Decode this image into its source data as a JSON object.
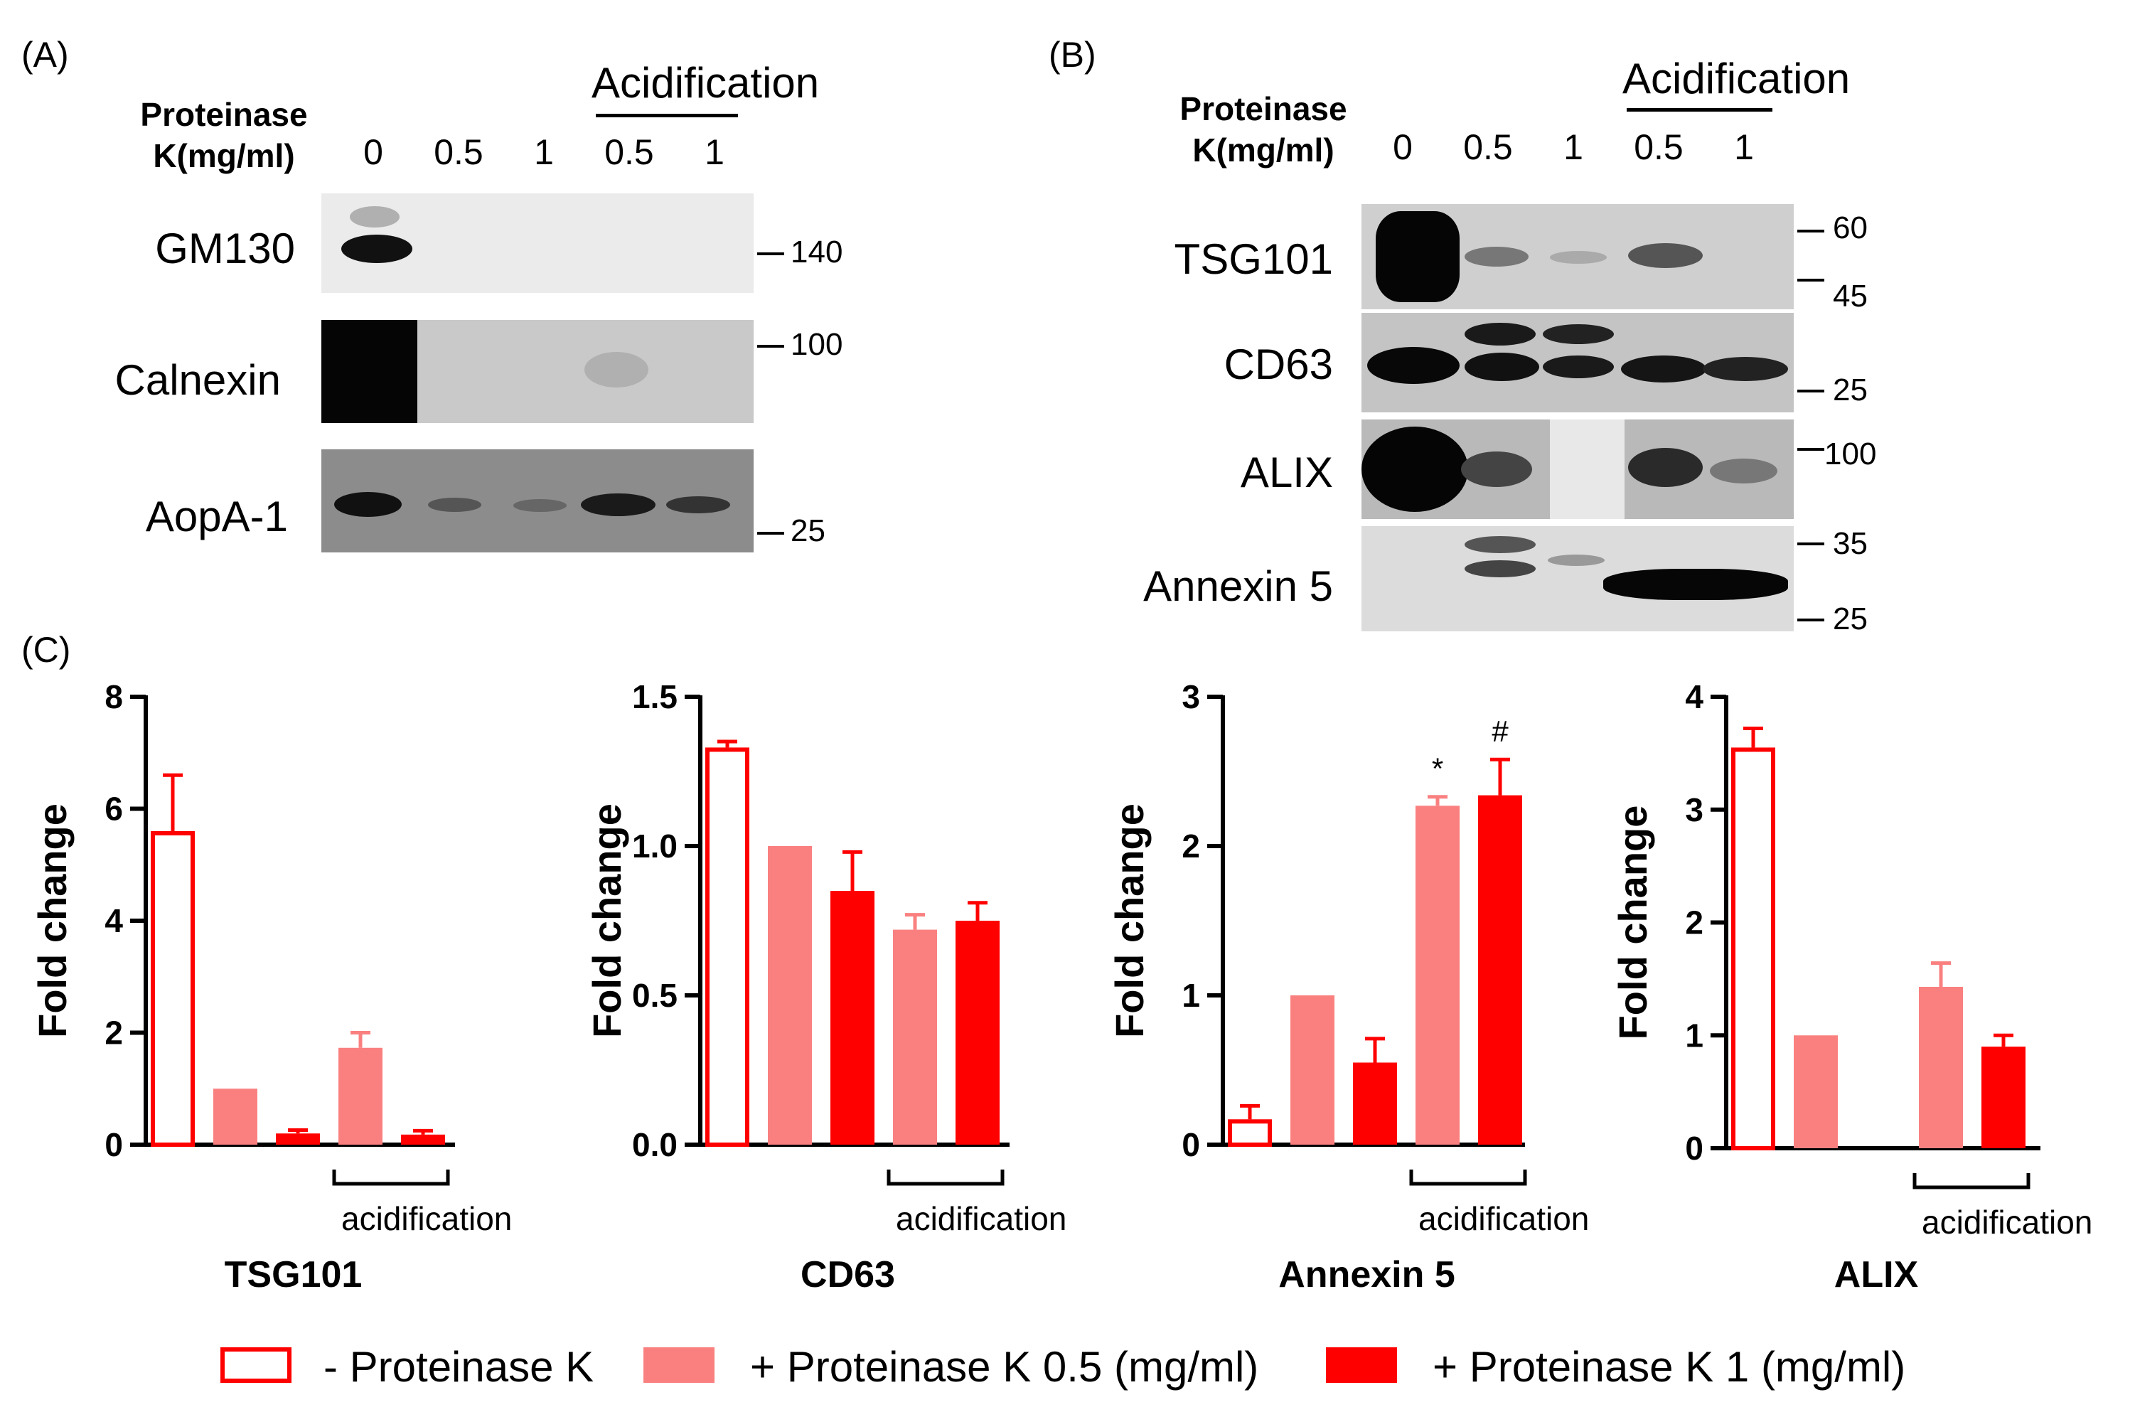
{
  "panels": {
    "a": "(A)",
    "b": "(B)",
    "c": "(C)"
  },
  "panel_a": {
    "pk_label_line1": "Proteinase",
    "pk_label_line2": "K(mg/ml)",
    "doses": [
      "0",
      "0.5",
      "1",
      "0.5",
      "1"
    ],
    "acidification": "Acidification",
    "proteins": [
      "GM130",
      "Calnexin",
      "AopA-1"
    ],
    "markers": [
      "140",
      "100",
      "25"
    ]
  },
  "panel_b": {
    "pk_label_line1": "Proteinase",
    "pk_label_line2": "K(mg/ml)",
    "doses": [
      "0",
      "0.5",
      "1",
      "0.5",
      "1"
    ],
    "acidification": "Acidification",
    "proteins": [
      "TSG101",
      "CD63",
      "ALIX",
      "Annexin 5"
    ],
    "markers": [
      "60",
      "45",
      "25",
      "100",
      "35",
      "25"
    ]
  },
  "colors": {
    "control": "#ff0000",
    "pk05": "#fa8080",
    "pk1": "#ff0000"
  },
  "chart_data": [
    {
      "type": "bar",
      "title": "TSG101",
      "ylabel": "Fold change",
      "ylim": [
        0,
        8
      ],
      "yticks": [
        "0",
        "2",
        "4",
        "6",
        "8"
      ],
      "values": [
        5.6,
        1.0,
        0.2,
        1.73,
        0.18
      ],
      "errors": [
        1.0,
        0,
        0.06,
        0.27,
        0.07
      ],
      "bar_styles": [
        "control",
        "pk05",
        "pk1",
        "pk05",
        "pk1"
      ],
      "annotations": [
        "",
        "",
        "",
        "",
        ""
      ],
      "bracket_label": "acidification",
      "bracket_bars": [
        3,
        4
      ]
    },
    {
      "type": "bar",
      "title": "CD63",
      "ylabel": "Fold change",
      "ylim": [
        0,
        1.5
      ],
      "yticks": [
        "0.0",
        "0.5",
        "1.0",
        "1.5"
      ],
      "values": [
        1.33,
        1.0,
        0.85,
        0.72,
        0.75
      ],
      "errors": [
        0.02,
        0,
        0.13,
        0.05,
        0.06
      ],
      "bar_styles": [
        "control",
        "pk05",
        "pk1",
        "pk05",
        "pk1"
      ],
      "annotations": [
        "",
        "",
        "",
        "",
        ""
      ],
      "bracket_label": "acidification",
      "bracket_bars": [
        3,
        4
      ]
    },
    {
      "type": "bar",
      "title": "Annexin 5",
      "ylabel": "Fold change",
      "ylim": [
        0,
        3
      ],
      "yticks": [
        "0",
        "1",
        "2",
        "3"
      ],
      "values": [
        0.17,
        1.0,
        0.55,
        2.27,
        2.34
      ],
      "errors": [
        0.09,
        0,
        0.16,
        0.06,
        0.24
      ],
      "bar_styles": [
        "control",
        "pk05",
        "pk1",
        "pk05",
        "pk1"
      ],
      "annotations": [
        "",
        "",
        "",
        "*",
        "#"
      ],
      "bracket_label": "acidification",
      "bracket_bars": [
        3,
        4
      ]
    },
    {
      "type": "bar",
      "title": "ALIX",
      "ylabel": "Fold change",
      "ylim": [
        0,
        4
      ],
      "yticks": [
        "0",
        "1",
        "2",
        "3",
        "4"
      ],
      "values": [
        3.55,
        1.0,
        0,
        1.43,
        0.9
      ],
      "errors": [
        0.17,
        0,
        0,
        0.21,
        0.1
      ],
      "bar_styles": [
        "control",
        "pk05",
        "none",
        "pk05",
        "pk1"
      ],
      "annotations": [
        "",
        "",
        "",
        "",
        ""
      ],
      "bracket_label": "acidification",
      "bracket_bars": [
        3,
        4
      ]
    }
  ],
  "legend": [
    {
      "label": "- Proteinase K",
      "style": "control"
    },
    {
      "label": "+ Proteinase K 0.5 (mg/ml)",
      "style": "pk05"
    },
    {
      "label": "+ Proteinase K 1 (mg/ml)",
      "style": "pk1"
    }
  ]
}
